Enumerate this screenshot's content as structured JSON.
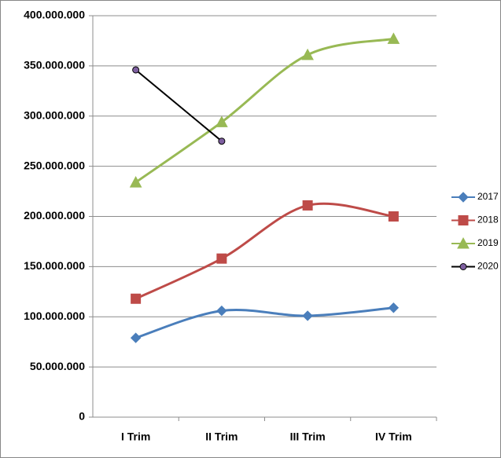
{
  "chart_data": {
    "type": "line",
    "categories": [
      "I Trim",
      "II Trim",
      "III Trim",
      "IV Trim"
    ],
    "series": [
      {
        "name": "2017",
        "color": "#4a7ebb",
        "marker": "diamond",
        "marker_color": "#4a7ebb",
        "smooth": true,
        "values": [
          79000000,
          106000000,
          101000000,
          109000000
        ]
      },
      {
        "name": "2018",
        "color": "#be4b48",
        "marker": "square",
        "marker_color": "#be4b48",
        "smooth": true,
        "values": [
          118000000,
          158000000,
          211000000,
          200000000
        ]
      },
      {
        "name": "2019",
        "color": "#98b954",
        "marker": "triangle",
        "marker_color": "#98b954",
        "smooth": true,
        "values": [
          234000000,
          294000000,
          361000000,
          377000000
        ]
      },
      {
        "name": "2020",
        "color": "#000000",
        "marker": "circle",
        "marker_color": "#7e5fa0",
        "smooth": false,
        "values": [
          346000000,
          275000000,
          null,
          null
        ]
      }
    ],
    "ylim": [
      0,
      400000000
    ],
    "yticks": [
      0,
      {
        "value": 50000000,
        "label": "50.000.000"
      },
      {
        "value": 100000000,
        "label": "100.000.000"
      },
      {
        "value": 150000000,
        "label": "150.000.000"
      },
      {
        "value": 200000000,
        "label": "200.000.000"
      },
      {
        "value": 250000000,
        "label": "250.000.000"
      },
      {
        "value": 300000000,
        "label": "300.000.000"
      },
      {
        "value": 350000000,
        "label": "350.000.000"
      },
      {
        "value": 400000000,
        "label": "400.000.000"
      }
    ],
    "grid": true,
    "legend": "right"
  }
}
